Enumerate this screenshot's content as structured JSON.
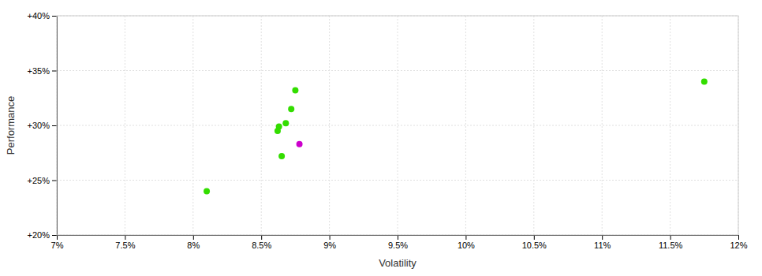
{
  "chart_data": {
    "type": "scatter",
    "xlabel": "Volatility",
    "ylabel": "Performance",
    "xlim": [
      0.07,
      0.12
    ],
    "ylim": [
      0.2,
      0.4
    ],
    "xticks": [
      {
        "value": 0.07,
        "label": "7%"
      },
      {
        "value": 0.075,
        "label": "7.5%"
      },
      {
        "value": 0.08,
        "label": "8%"
      },
      {
        "value": 0.085,
        "label": "8.5%"
      },
      {
        "value": 0.09,
        "label": "9%"
      },
      {
        "value": 0.095,
        "label": "9.5%"
      },
      {
        "value": 0.1,
        "label": "10%"
      },
      {
        "value": 0.105,
        "label": "10.5%"
      },
      {
        "value": 0.11,
        "label": "11%"
      },
      {
        "value": 0.115,
        "label": "11.5%"
      },
      {
        "value": 0.12,
        "label": "12%"
      }
    ],
    "yticks": [
      {
        "value": 0.2,
        "label": "+20%"
      },
      {
        "value": 0.25,
        "label": "+25%"
      },
      {
        "value": 0.3,
        "label": "+30%"
      },
      {
        "value": 0.35,
        "label": "+35%"
      },
      {
        "value": 0.4,
        "label": "+40%"
      }
    ],
    "grid": true,
    "series": [
      {
        "color": "#33dd00",
        "x": [
          0.081,
          0.0875,
          0.0872,
          0.0868,
          0.0863,
          0.0862,
          0.0865,
          0.1175
        ],
        "values": [
          0.24,
          0.332,
          0.315,
          0.302,
          0.299,
          0.295,
          0.272,
          0.34
        ]
      },
      {
        "color": "#cc00cc",
        "x": [
          0.0878
        ],
        "values": [
          0.283
        ]
      }
    ]
  }
}
